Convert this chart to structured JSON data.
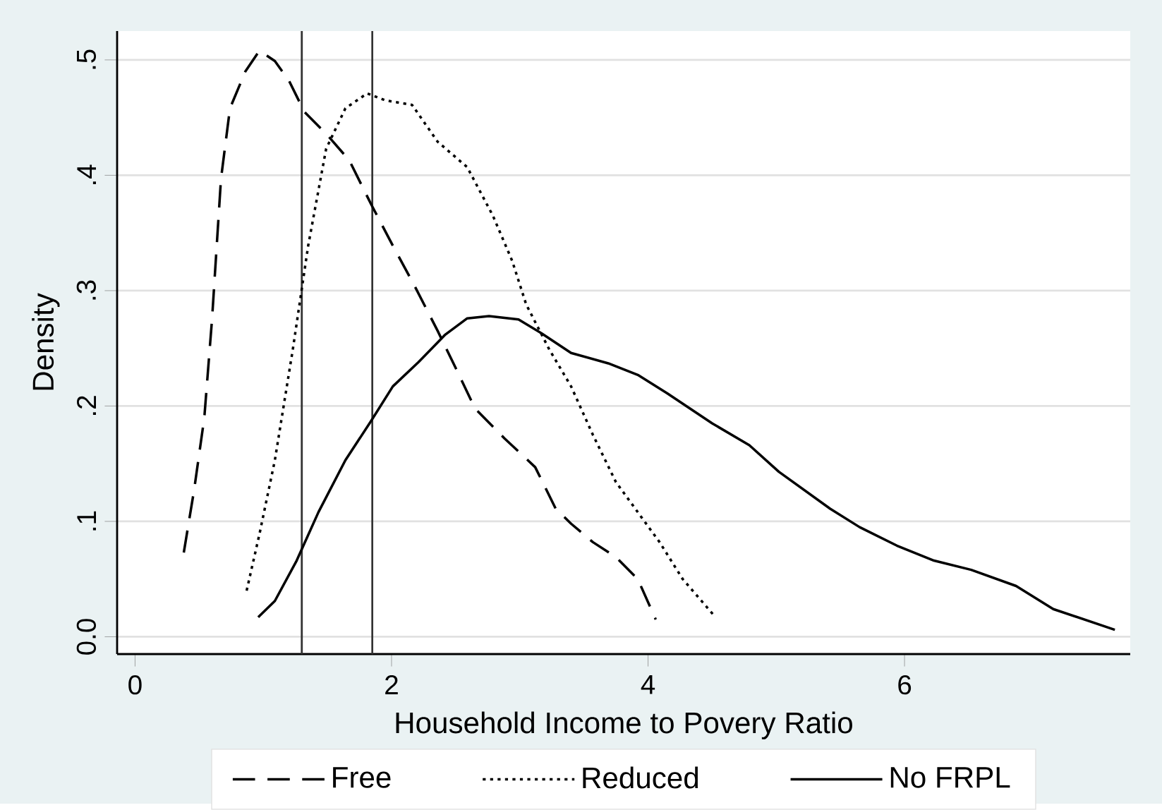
{
  "chart_data": {
    "type": "line",
    "xlabel": "Household Income to Povery Ratio",
    "ylabel": "Density",
    "xlim": [
      -0.14,
      7.76
    ],
    "ylim": [
      -0.015,
      0.525
    ],
    "xticks": [
      0,
      2,
      4,
      6
    ],
    "yticks": [
      {
        "value": 0,
        "label": "0.0"
      },
      {
        "value": 0.1,
        "label": ".1"
      },
      {
        "value": 0.2,
        "label": ".2"
      },
      {
        "value": 0.3,
        "label": ".3"
      },
      {
        "value": 0.4,
        "label": ".4"
      },
      {
        "value": 0.5,
        "label": ".5"
      }
    ],
    "grid": "y",
    "legend": "bottom",
    "series": [
      {
        "name": "Free",
        "color": "#000000",
        "line_style": "dashed",
        "x": [
          0.38,
          0.46,
          0.54,
          0.6,
          0.67,
          0.74,
          0.86,
          0.97,
          1.09,
          1.2,
          1.32,
          1.49,
          1.67,
          1.84,
          2.01,
          2.18,
          2.36,
          2.5,
          2.65,
          2.88,
          3.12,
          3.28,
          3.4,
          3.57,
          3.75,
          3.92,
          4.06
        ],
        "values": [
          0.073,
          0.127,
          0.19,
          0.275,
          0.397,
          0.458,
          0.49,
          0.508,
          0.499,
          0.482,
          0.455,
          0.436,
          0.413,
          0.375,
          0.339,
          0.304,
          0.265,
          0.233,
          0.198,
          0.172,
          0.147,
          0.111,
          0.098,
          0.082,
          0.069,
          0.05,
          0.015
        ]
      },
      {
        "name": "Reduced",
        "color": "#000000",
        "line_style": "dotted",
        "x": [
          0.87,
          0.97,
          1.09,
          1.23,
          1.35,
          1.49,
          1.64,
          1.81,
          1.95,
          2.16,
          2.36,
          2.59,
          2.79,
          2.94,
          3.05,
          3.23,
          3.4,
          3.57,
          3.75,
          3.92,
          4.09,
          4.27,
          4.51
        ],
        "values": [
          0.04,
          0.089,
          0.153,
          0.249,
          0.339,
          0.423,
          0.458,
          0.471,
          0.465,
          0.461,
          0.429,
          0.407,
          0.365,
          0.326,
          0.288,
          0.249,
          0.217,
          0.175,
          0.134,
          0.108,
          0.082,
          0.05,
          0.019
        ]
      },
      {
        "name": "No FRPL",
        "color": "#000000",
        "line_style": "solid",
        "x": [
          0.96,
          1.09,
          1.26,
          1.43,
          1.64,
          1.84,
          2.01,
          2.21,
          2.42,
          2.59,
          2.76,
          2.99,
          3.17,
          3.4,
          3.69,
          3.92,
          4.15,
          4.5,
          4.79,
          5.02,
          5.42,
          5.65,
          5.94,
          6.23,
          6.52,
          6.87,
          7.16,
          7.64
        ],
        "values": [
          0.017,
          0.031,
          0.066,
          0.108,
          0.153,
          0.187,
          0.217,
          0.238,
          0.262,
          0.276,
          0.278,
          0.275,
          0.263,
          0.246,
          0.237,
          0.227,
          0.211,
          0.185,
          0.166,
          0.143,
          0.111,
          0.095,
          0.079,
          0.066,
          0.058,
          0.044,
          0.024,
          0.006
        ]
      }
    ],
    "ref_lines": [
      {
        "axis": "x",
        "value": 1.3,
        "color": "#333333"
      },
      {
        "axis": "x",
        "value": 1.85,
        "color": "#333333"
      }
    ]
  }
}
